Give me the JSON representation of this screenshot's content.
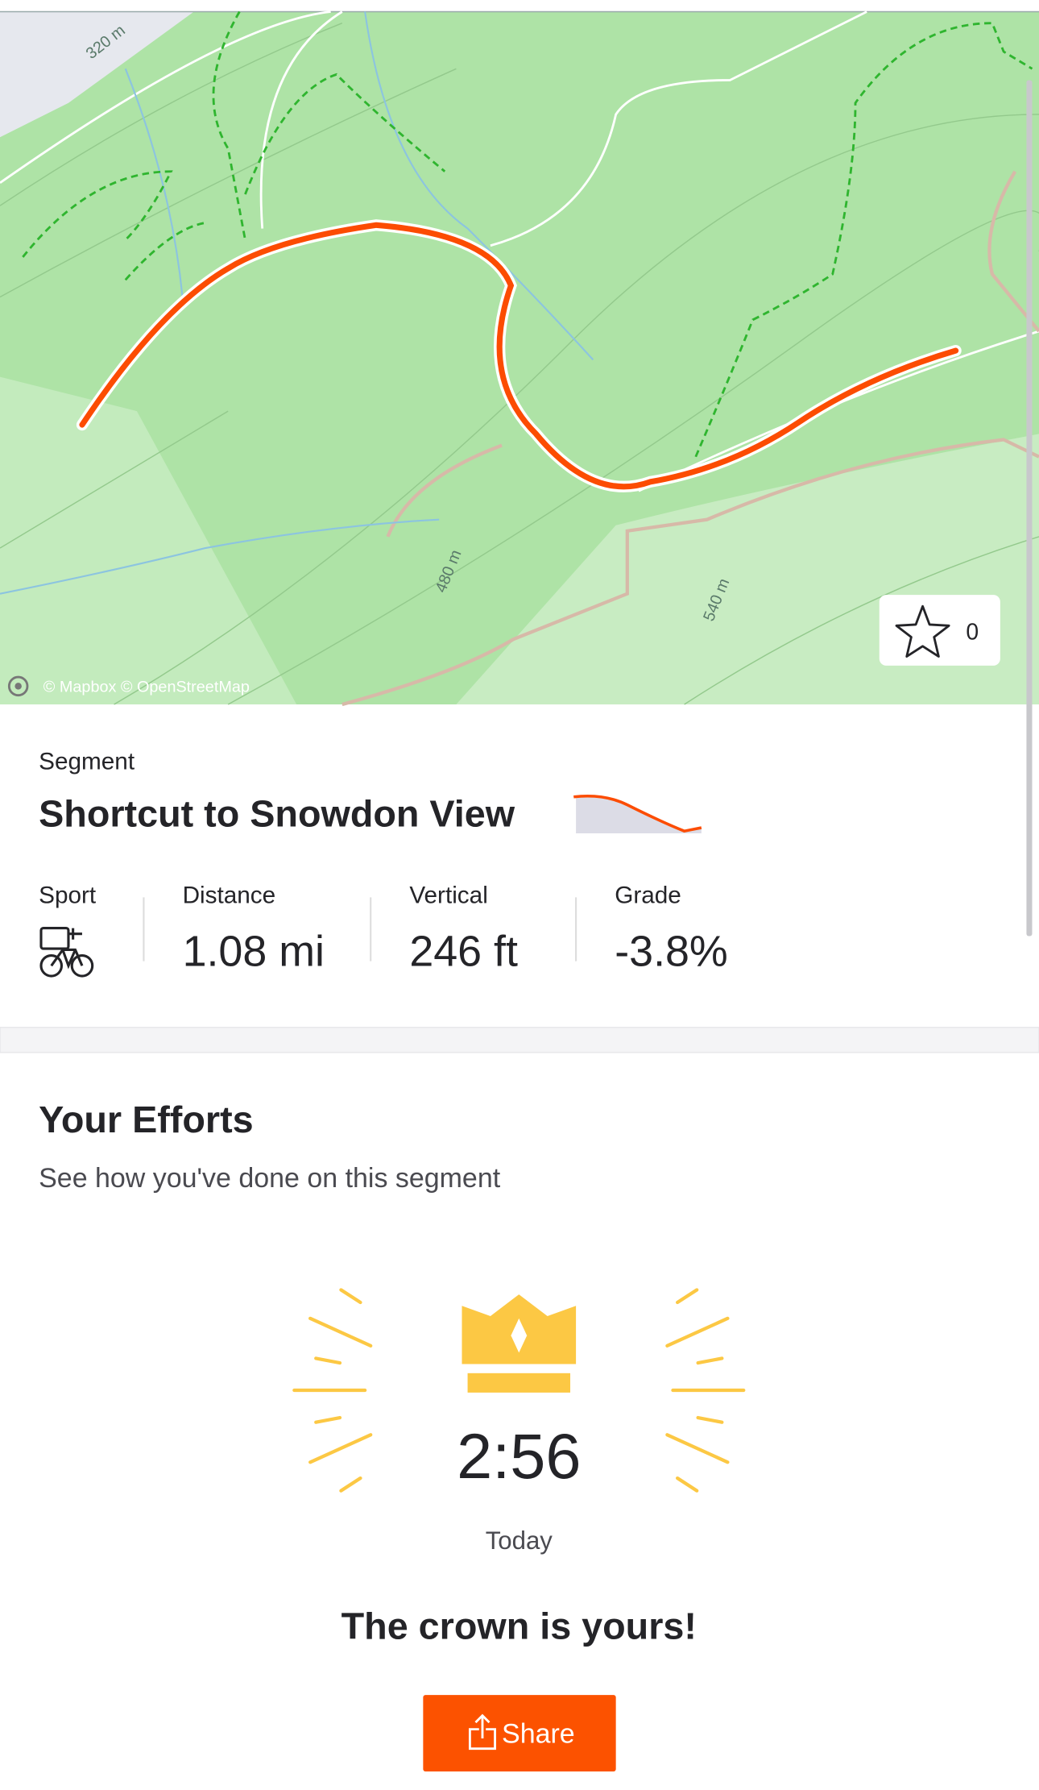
{
  "map": {
    "contour_labels": [
      "320 m",
      "480 m",
      "540 m"
    ],
    "attribution": "© Mapbox © OpenStreetMap",
    "star_count": 0
  },
  "segment": {
    "label": "Segment",
    "name": "Shortcut to Snowdon View",
    "stats": [
      {
        "label": "Sport"
      },
      {
        "label": "Distance",
        "value": "1.08 mi"
      },
      {
        "label": "Vertical",
        "value": "246 ft"
      },
      {
        "label": "Grade",
        "value": "-3.8%"
      }
    ]
  },
  "efforts": {
    "title": "Your Efforts",
    "subtitle": "See how you've done on this segment",
    "time": "2:56",
    "date": "Today",
    "message": "The crown is yours!",
    "share_button": "Share"
  }
}
